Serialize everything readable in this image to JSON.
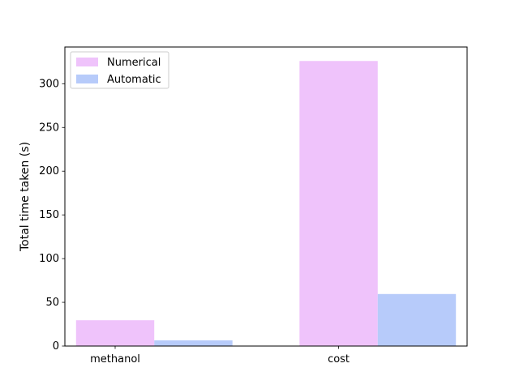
{
  "chart_data": {
    "type": "bar",
    "title": "",
    "xlabel": "",
    "ylabel": "Total time taken (s)",
    "categories": [
      "methanol",
      "cost"
    ],
    "series": [
      {
        "name": "Numerical",
        "values": [
          29.5,
          326
        ],
        "color": "#efc3fb"
      },
      {
        "name": "Automatic",
        "values": [
          6.5,
          59.5
        ],
        "color": "#b7cbfa"
      }
    ],
    "ylim": [
      0,
      342
    ],
    "yticks": [
      0,
      50,
      100,
      150,
      200,
      250,
      300
    ],
    "grid": false,
    "legend_position": "top-left"
  }
}
